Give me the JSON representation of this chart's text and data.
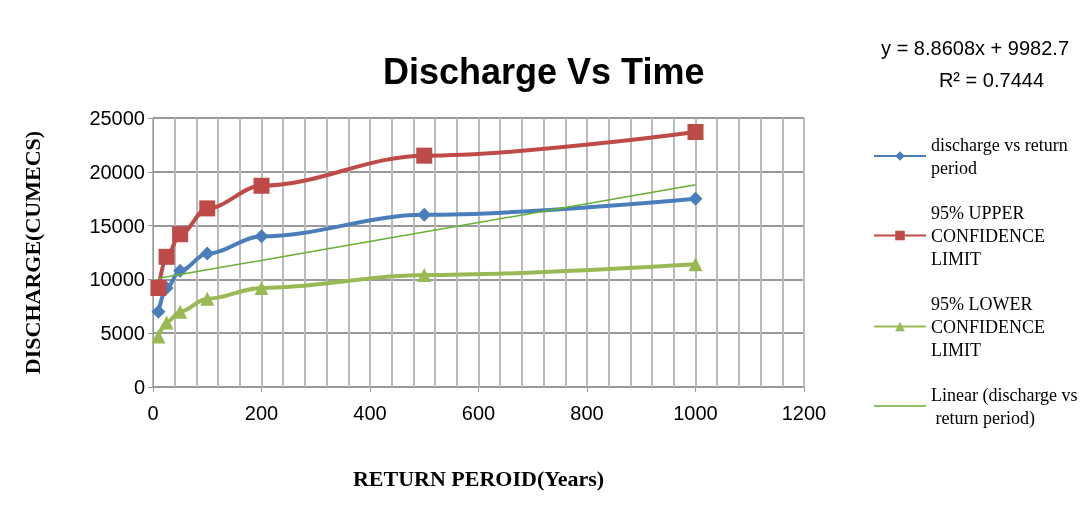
{
  "chart_data": {
    "type": "line",
    "title": "Discharge Vs Time",
    "xlabel": "RETURN PEROID(Years)",
    "ylabel": "DISCHARGE(CUMECS)",
    "annotations": [
      "y = 8.8608x + 9982.7",
      "R² = 0.7444"
    ],
    "x": [
      10,
      25,
      50,
      100,
      200,
      500,
      1000
    ],
    "series": [
      {
        "name": "discharge vs return period",
        "color": "#4a7ebb",
        "marker": "diamond",
        "values": [
          7000,
          9200,
          10800,
          12400,
          14000,
          16000,
          17500
        ]
      },
      {
        "name": "95% UPPER CONFIDENCE LIMIT",
        "color": "#be4b48",
        "marker": "square",
        "values": [
          9200,
          12100,
          14200,
          16600,
          18700,
          21500,
          23700
        ]
      },
      {
        "name": "95% LOWER CONFIDENCE LIMIT",
        "color": "#98b954",
        "marker": "triangle",
        "values": [
          4700,
          6000,
          7000,
          8200,
          9200,
          10400,
          11400
        ]
      },
      {
        "name": "Linear (discharge vs return period)",
        "color": "#66b032",
        "marker": "none",
        "x": [
          10,
          1000
        ],
        "values": [
          10100,
          18800
        ]
      }
    ],
    "xlim": [
      0,
      1200
    ],
    "xticks": [
      0,
      200,
      400,
      600,
      800,
      1000,
      1200
    ],
    "ylim": [
      0,
      25000
    ],
    "yticks": [
      0,
      5000,
      10000,
      15000,
      20000,
      25000
    ],
    "grid": true,
    "legend": "right"
  }
}
